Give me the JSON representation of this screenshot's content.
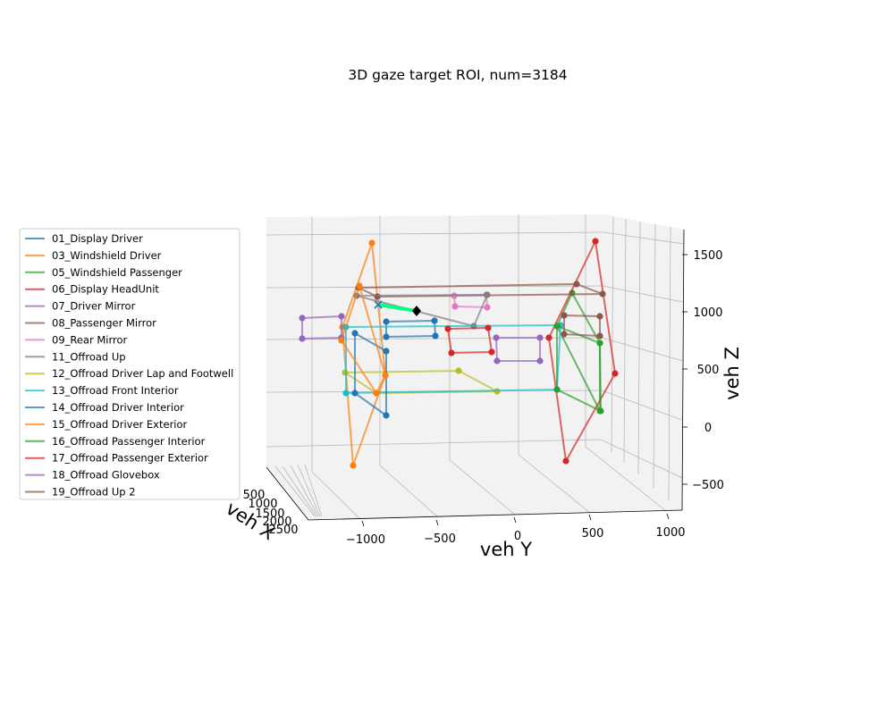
{
  "chart_data": {
    "type": "line3d",
    "title": "3D gaze target ROI, num=3184",
    "xlabel": "veh X",
    "ylabel": "veh Y",
    "zlabel": "veh Z",
    "x_ticks": [
      "500",
      "1000",
      "1500",
      "2000",
      "2500"
    ],
    "y_ticks": [
      "−1000",
      "−500",
      "0",
      "500",
      "1000"
    ],
    "z_ticks": [
      "1500",
      "1000",
      "500",
      "0",
      "−500"
    ],
    "legend_position": "left",
    "series": [
      {
        "name": "01_Display Driver",
        "color": "#1f77b4"
      },
      {
        "name": "03_Windshield Driver",
        "color": "#ff7f0e"
      },
      {
        "name": "05_Windshield Passenger",
        "color": "#2ca02c"
      },
      {
        "name": "06_Display HeadUnit",
        "color": "#d62728"
      },
      {
        "name": "07_Driver Mirror",
        "color": "#9467bd"
      },
      {
        "name": "08_Passenger Mirror",
        "color": "#8c564b"
      },
      {
        "name": "09_Rear Mirror",
        "color": "#e377c2"
      },
      {
        "name": "11_Offroad Up",
        "color": "#7f7f7f"
      },
      {
        "name": "12_Offroad Driver Lap and Footwell",
        "color": "#bcbd22"
      },
      {
        "name": "13_Offroad Front Interior",
        "color": "#17becf"
      },
      {
        "name": "14_Offroad Driver Interior",
        "color": "#1f77b4"
      },
      {
        "name": "15_Offroad Driver Exterior",
        "color": "#ff7f0e"
      },
      {
        "name": "16_Offroad Passenger Interior",
        "color": "#2ca02c"
      },
      {
        "name": "17_Offroad Passenger Exterior",
        "color": "#d62728"
      },
      {
        "name": "18_Offroad Glovebox",
        "color": "#9467bd"
      },
      {
        "name": "19_Offroad Up 2",
        "color": "#8c564b"
      }
    ],
    "gaze_marker": {
      "color": "#00ff88",
      "start_symbol": "x",
      "end_symbol": "diamond"
    }
  }
}
